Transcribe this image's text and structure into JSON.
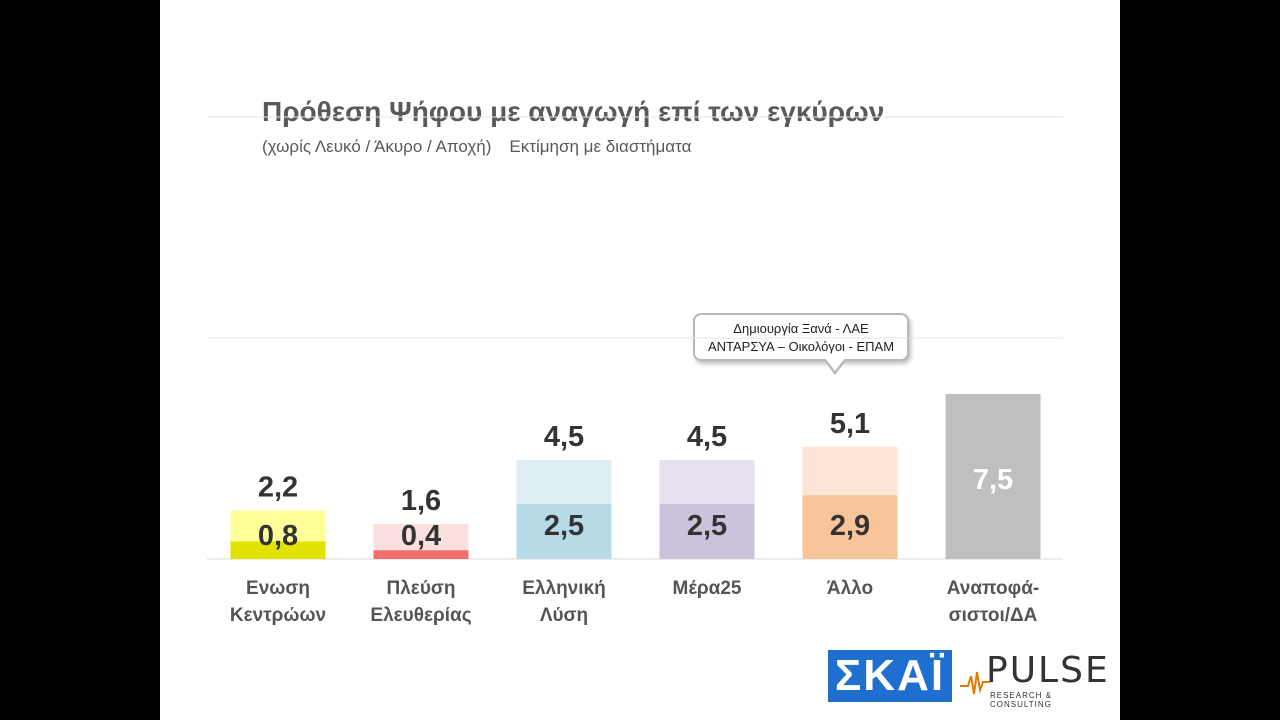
{
  "slide": {
    "title": "Πρόθεση Ψήφου με αναγωγή επί των εγκύρων",
    "subtitle_part1": "(χωρίς Λευκό / Άκυρο / Αποχή)",
    "subtitle_part2": "Εκτίμηση με διαστήματα",
    "callout_line1": "Δημιουργία Ξανά -  ΛΑΕ",
    "callout_line2": "ΑΝΤΑΡΣΥΑ – Οικολόγοι - ΕΠΑΜ",
    "logo_left": "ΣΚΑΪ",
    "logo_right": "PULSE",
    "logo_right_tag": "RESEARCH & CONSULTING"
  },
  "chart_data": {
    "type": "bar",
    "categories": [
      [
        "Ενωση",
        "Κεντρώων"
      ],
      [
        "Πλεύση",
        "Ελευθερίας"
      ],
      [
        "Ελληνική",
        "Λύση"
      ],
      [
        "Μέρα25"
      ],
      [
        "Άλλο"
      ],
      [
        "Αναποφά-",
        "σιστοι/ΔΑ"
      ]
    ],
    "series": [
      {
        "values": [
          0.8,
          0.4,
          2.5,
          2.5,
          2.9,
          7.5
        ]
      },
      {
        "values": [
          2.2,
          1.6,
          4.5,
          4.5,
          5.1,
          null
        ]
      }
    ],
    "value_labels_low": [
      "0,8",
      "0,4",
      "2,5",
      "2,5",
      "2,9",
      "7,5"
    ],
    "value_labels_high": [
      "2,2",
      "1,6",
      "4,5",
      "4,5",
      "5,1",
      ""
    ],
    "colors_dark": [
      "#e2e200",
      "#f07070",
      "#b6dbe6",
      "#cdc2dc",
      "#f8c59a",
      "#bfbfbf"
    ],
    "colors_light": [
      "#ffff99",
      "#fce0e0",
      "#deeef3",
      "#e6e0ef",
      "#fde6d5",
      "#bfbfbf"
    ],
    "ylim": [
      0,
      10
    ],
    "grid": true
  }
}
